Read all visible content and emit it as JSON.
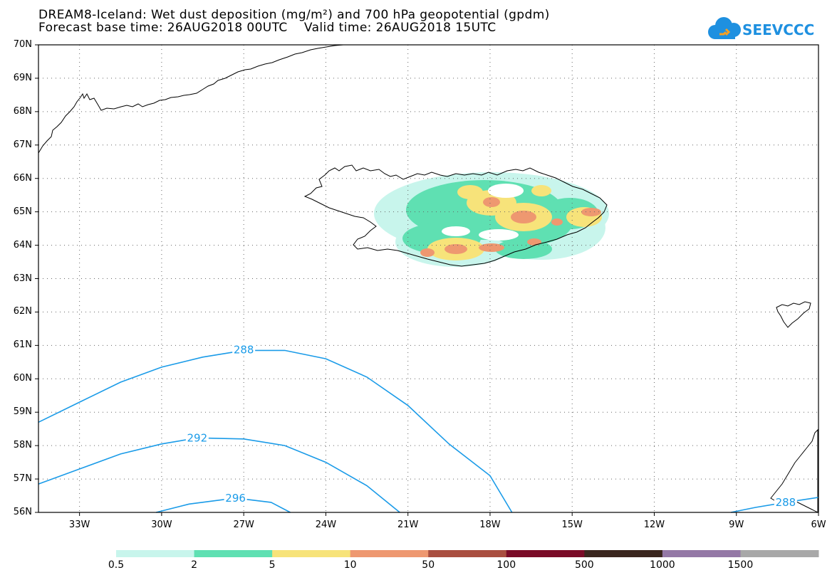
{
  "header": {
    "title_line1": "DREAM8-Iceland: Wet dust deposition (mg/m²) and 700 hPa geopotential (gpdm)",
    "title_line2": "Forecast base time: 26AUG2018 00UTC    Valid time: 26AUG2018 15UTC",
    "logo_text": "SEEVCCC"
  },
  "map": {
    "lat_labels": [
      "70N",
      "69N",
      "68N",
      "67N",
      "66N",
      "65N",
      "64N",
      "63N",
      "62N",
      "61N",
      "60N",
      "59N",
      "58N",
      "57N",
      "56N"
    ],
    "lon_labels": [
      "33W",
      "30W",
      "27W",
      "24W",
      "21W",
      "18W",
      "15W",
      "12W",
      "9W",
      "6W"
    ],
    "lat_range": [
      56,
      70
    ],
    "lon_range": [
      -34.5,
      -6
    ],
    "contours": [
      {
        "label": "288",
        "label_lon": -27.0,
        "label_lat": 60.87
      },
      {
        "label": "292",
        "label_lon": -28.7,
        "label_lat": 58.23
      },
      {
        "label": "296",
        "label_lon": -27.3,
        "label_lat": 56.43
      },
      {
        "label": "288",
        "label_lon": -7.2,
        "label_lat": 56.3
      }
    ]
  },
  "legend": {
    "labels": [
      "0.5",
      "2",
      "5",
      "10",
      "50",
      "100",
      "500",
      "1000",
      "1500"
    ],
    "colors": [
      "#c8f5ec",
      "#5fe0b2",
      "#f7e37a",
      "#ee9870",
      "#a94e40",
      "#7a0b27",
      "#3a261e",
      "#9478a6",
      "#a8a8a8"
    ]
  },
  "colors": {
    "contour": "#1a9be8",
    "coastline": "#000000",
    "grid": "#666666"
  }
}
